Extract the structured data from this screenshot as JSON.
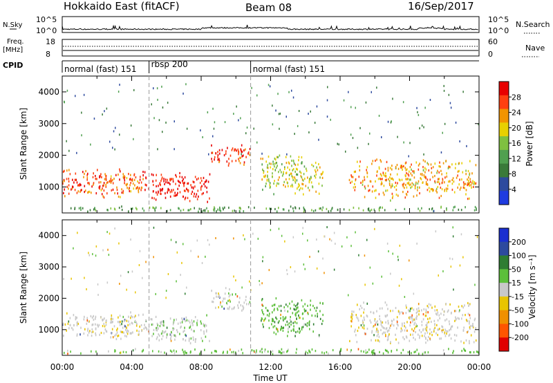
{
  "header": {
    "station": "Hokkaido East (fitACF)",
    "beam": "Beam 08",
    "date": "16/Sep/2017"
  },
  "top_panels": {
    "nsky": {
      "label": "N.Sky",
      "ticks": [
        "10^5",
        "10^0"
      ]
    },
    "nsearch": {
      "label": "N.Search",
      "ticks": [
        "10^5",
        "10^0"
      ]
    },
    "freq": {
      "label1": "Freq.",
      "label2": "[MHz]",
      "ticks": [
        "18",
        "8"
      ]
    },
    "nave": {
      "label": "Nave",
      "ticks": [
        "60",
        "0"
      ]
    },
    "cpid": {
      "label": "CPID"
    }
  },
  "cpid_segments": [
    {
      "name": "normal (fast) 151",
      "start": 0,
      "end": 5.0
    },
    {
      "name": "rbsp 200",
      "start": 5.0,
      "end": 10.85
    },
    {
      "name": "normal (fast) 151",
      "start": 10.85,
      "end": 24
    }
  ],
  "chart_data": [
    {
      "type": "heatmap",
      "panel": "power",
      "ylabel": "Slant Range [km]",
      "yticks": [
        "1000",
        "2000",
        "3000",
        "4000"
      ],
      "ylim": [
        180,
        4500
      ],
      "xlim": [
        0,
        24
      ],
      "colorbar": {
        "label": "Power [dB]",
        "ticks": [
          "4",
          "8",
          "12",
          "16",
          "20",
          "24",
          "28"
        ],
        "range": [
          0,
          32
        ]
      },
      "regions": [
        {
          "x": [
            0.0,
            5.0
          ],
          "y": [
            700,
            1600
          ],
          "level": 26
        },
        {
          "x": [
            5.0,
            8.5
          ],
          "y": [
            550,
            1500
          ],
          "level": 30
        },
        {
          "x": [
            8.5,
            10.8
          ],
          "y": [
            1600,
            2350
          ],
          "level": 27
        },
        {
          "x": [
            11.4,
            15.0
          ],
          "y": [
            800,
            2050
          ],
          "level": 18
        },
        {
          "x": [
            16.5,
            23.8
          ],
          "y": [
            600,
            1900
          ],
          "level": 22
        },
        {
          "x": [
            0.0,
            24.0
          ],
          "y": [
            250,
            420
          ],
          "level": 12
        }
      ]
    },
    {
      "type": "heatmap",
      "panel": "velocity",
      "ylabel": "Slant Range [km]",
      "yticks": [
        "1000",
        "2000",
        "3000",
        "4000"
      ],
      "ylim": [
        180,
        4500
      ],
      "xlim": [
        0,
        24
      ],
      "xlabel": "Time UT",
      "xticks": [
        "00:00",
        "04:00",
        "08:00",
        "12:00",
        "16:00",
        "20:00",
        "00:00"
      ],
      "colorbar": {
        "label": "Velocity [m s⁻¹]",
        "ticks": [
          "200",
          "100",
          "50",
          "15",
          "-15",
          "-50",
          "-100",
          "-200"
        ]
      },
      "regions": [
        {
          "x": [
            0.0,
            5.0
          ],
          "y": [
            700,
            1600
          ],
          "velocity": -5
        },
        {
          "x": [
            5.0,
            8.5
          ],
          "y": [
            550,
            1500
          ],
          "velocity": 5
        },
        {
          "x": [
            8.5,
            10.8
          ],
          "y": [
            1600,
            2350
          ],
          "velocity": 0
        },
        {
          "x": [
            11.4,
            15.0
          ],
          "y": [
            800,
            2050
          ],
          "velocity": 40
        },
        {
          "x": [
            16.5,
            23.8
          ],
          "y": [
            600,
            1900
          ],
          "velocity": -5
        },
        {
          "x": [
            0.0,
            24.0
          ],
          "y": [
            250,
            420
          ],
          "velocity": 30
        }
      ]
    }
  ],
  "colors": {
    "power": [
      "#1f3ce0",
      "#2d4a9e",
      "#3a7a3a",
      "#50a050",
      "#7fc040",
      "#e8d000",
      "#f29400",
      "#ff4010",
      "#e80000"
    ],
    "velocity": [
      "#1a2fd0",
      "#2d4a9e",
      "#2e7d32",
      "#5cbf3a",
      "#c8c8c8",
      "#e8c400",
      "#f09000",
      "#ff5500",
      "#e00000"
    ]
  }
}
